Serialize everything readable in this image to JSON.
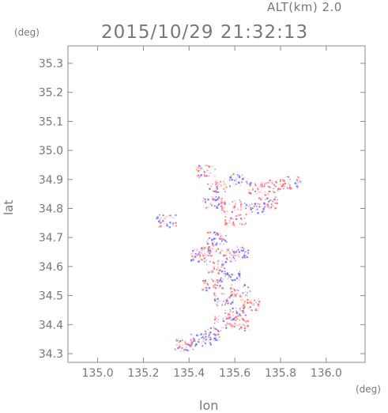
{
  "header": {
    "alt_label": "ALT(km) 2.0",
    "timestamp": "2015/10/29 21:32:13"
  },
  "axes": {
    "y_unit": "(deg)",
    "x_unit": "(deg)",
    "ylabel": "lat",
    "xlabel": "lon"
  },
  "colors": {
    "positive": "#ff6b6b",
    "positive_light": "#ffc6c6",
    "negative": "#6b6bff",
    "frame": "#888888"
  },
  "chart_data": {
    "type": "scatter",
    "title": "2015/10/29 21:32:13",
    "xlabel": "lon",
    "ylabel": "lat",
    "xlim": [
      134.87,
      136.17
    ],
    "ylim": [
      34.27,
      35.36
    ],
    "xticks": [
      135.0,
      135.2,
      135.4,
      135.6,
      135.8,
      136.0
    ],
    "xtick_labels": [
      "135.0",
      "135.2",
      "135.4",
      "135.6",
      "135.8",
      "136.0"
    ],
    "yticks": [
      34.3,
      34.4,
      34.5,
      34.6,
      34.7,
      34.8,
      34.9,
      35.0,
      35.1,
      35.2,
      35.3
    ],
    "ytick_labels": [
      "34.3",
      "34.4",
      "34.5",
      "34.6",
      "34.7",
      "34.8",
      "34.9",
      "35.0",
      "35.1",
      "35.2",
      "35.3"
    ],
    "grid": false,
    "clusters": [
      {
        "lon": 135.47,
        "lat": 34.93,
        "sign": "pos"
      },
      {
        "lon": 135.52,
        "lat": 34.88,
        "sign": "pos"
      },
      {
        "lon": 135.62,
        "lat": 34.9,
        "sign": "neg"
      },
      {
        "lon": 135.7,
        "lat": 34.87,
        "sign": "pos"
      },
      {
        "lon": 135.77,
        "lat": 34.88,
        "sign": "pos"
      },
      {
        "lon": 135.84,
        "lat": 34.89,
        "sign": "pos"
      },
      {
        "lon": 135.5,
        "lat": 34.82,
        "sign": "neg"
      },
      {
        "lon": 135.58,
        "lat": 34.81,
        "sign": "pos"
      },
      {
        "lon": 135.68,
        "lat": 34.8,
        "sign": "neg"
      },
      {
        "lon": 135.74,
        "lat": 34.82,
        "sign": "pos"
      },
      {
        "lon": 135.3,
        "lat": 34.76,
        "sign": "neg"
      },
      {
        "lon": 135.6,
        "lat": 34.76,
        "sign": "pos"
      },
      {
        "lon": 135.52,
        "lat": 34.7,
        "sign": "neg"
      },
      {
        "lon": 135.48,
        "lat": 34.66,
        "sign": "pos"
      },
      {
        "lon": 135.56,
        "lat": 34.64,
        "sign": "pos"
      },
      {
        "lon": 135.45,
        "lat": 34.64,
        "sign": "neg"
      },
      {
        "lon": 135.62,
        "lat": 34.65,
        "sign": "neg"
      },
      {
        "lon": 135.52,
        "lat": 34.6,
        "sign": "pos"
      },
      {
        "lon": 135.58,
        "lat": 34.57,
        "sign": "neg"
      },
      {
        "lon": 135.5,
        "lat": 34.54,
        "sign": "pos"
      },
      {
        "lon": 135.62,
        "lat": 34.52,
        "sign": "pos"
      },
      {
        "lon": 135.55,
        "lat": 34.49,
        "sign": "neg"
      },
      {
        "lon": 135.66,
        "lat": 34.47,
        "sign": "pos"
      },
      {
        "lon": 135.6,
        "lat": 34.44,
        "sign": "pos"
      },
      {
        "lon": 135.55,
        "lat": 34.41,
        "sign": "neg"
      },
      {
        "lon": 135.62,
        "lat": 34.4,
        "sign": "pos"
      },
      {
        "lon": 135.5,
        "lat": 34.37,
        "sign": "neg"
      },
      {
        "lon": 135.45,
        "lat": 34.35,
        "sign": "neg"
      },
      {
        "lon": 135.38,
        "lat": 34.33,
        "sign": "pos"
      }
    ]
  }
}
